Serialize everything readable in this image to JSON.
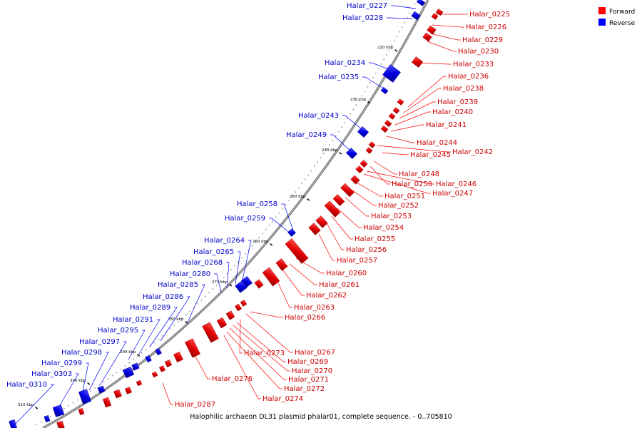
{
  "caption": "Halophilic archaeon DL31 plasmid phalar01, complete sequence. - 0..705810",
  "legend": [
    {
      "label": "Forward",
      "color": "#ff0000"
    },
    {
      "label": "Reverse",
      "color": "#0000ff"
    }
  ],
  "ticks": [
    "220 kbp",
    "230 kbp",
    "240 kbp",
    "250 kbp",
    "260 kbp",
    "270 kbp",
    "280 kbp",
    "290 kbp",
    "300 kbp",
    "310 kbp"
  ],
  "reverse_genes": [
    "Halar_0227",
    "Halar_0228",
    "Halar_0234",
    "Halar_0235",
    "Halar_0243",
    "Halar_0249",
    "Halar_0258",
    "Halar_0259",
    "Halar_0264",
    "Halar_0265",
    "Halar_0268",
    "Halar_0280",
    "Halar_0285",
    "Halar_0286",
    "Halar_0289",
    "Halar_0291",
    "Halar_0295",
    "Halar_0297",
    "Halar_0298",
    "Halar_0299",
    "Halar_0303",
    "Halar_0310"
  ],
  "forward_genes": [
    "Halar_0225",
    "Halar_0226",
    "Halar_0229",
    "Halar_0230",
    "Halar_0233",
    "Halar_0236",
    "Halar_0238",
    "Halar_0239",
    "Halar_0240",
    "Halar_0241",
    "Halar_0244",
    "Halar_0242",
    "Halar_0245",
    "Halar_0248",
    "Halar_0250",
    "Halar_0246",
    "Halar_0247",
    "Halar_0251",
    "Halar_0252",
    "Halar_0253",
    "Halar_0254",
    "Halar_0255",
    "Halar_0256",
    "Halar_0257",
    "Halar_0260",
    "Halar_0261",
    "Halar_0262",
    "Halar_0263",
    "Halar_0266",
    "Halar_0267",
    "Halar_0273",
    "Halar_0269",
    "Halar_0270",
    "Halar_0271",
    "Halar_0272",
    "Halar_0274",
    "Halar_0276",
    "Halar_0287"
  ]
}
